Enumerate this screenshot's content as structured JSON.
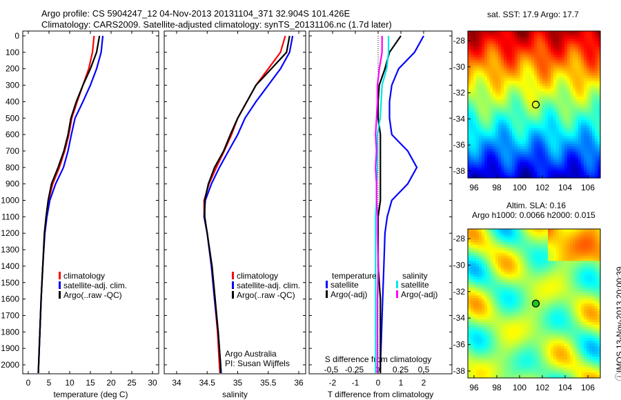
{
  "title_line1": "Argo profile: CS 5904247_12 04-Nov-2013 20131104_371 32.904S 101.426E",
  "title_line2": "Climatology: CARS2009. Satellite-adjusted climatology: synTS_20131106.nc (1.7d later)",
  "colors": {
    "climatology": "#ff0000",
    "satellite": "#0000ff",
    "argo": "#000000",
    "s_satellite": "#00e5e5",
    "s_argo": "#ff00ff"
  },
  "chart_data": [
    {
      "type": "line",
      "name": "temperature",
      "xlabel": "temperature (deg C)",
      "ylabel": "",
      "xlim": [
        -1.5,
        31.5
      ],
      "ylim": [
        2070,
        0
      ],
      "xticks": [
        0,
        5,
        10,
        15,
        20,
        25,
        30
      ],
      "yticks": [
        0,
        100,
        200,
        300,
        400,
        500,
        600,
        700,
        800,
        900,
        1000,
        1100,
        1200,
        1300,
        1400,
        1500,
        1600,
        1700,
        1800,
        1900,
        2000
      ],
      "depth": [
        0,
        100,
        200,
        300,
        400,
        500,
        600,
        700,
        800,
        900,
        1000,
        1100,
        1200,
        1400,
        1600,
        1800,
        2000,
        2050
      ],
      "series": [
        {
          "name": "climatology",
          "values": [
            15.9,
            15.5,
            14.6,
            13.2,
            11.8,
            10.5,
            9.8,
            8.8,
            7.5,
            5.9,
            4.9,
            4.3,
            3.9,
            3.5,
            3.1,
            2.8,
            2.5,
            2.4
          ]
        },
        {
          "name": "satellite-adj. clim.",
          "values": [
            18.0,
            17.6,
            16.5,
            15.0,
            13.2,
            11.3,
            10.4,
            9.6,
            8.5,
            6.6,
            5.2,
            4.5,
            4.0,
            3.5,
            3.1,
            2.8,
            2.5,
            2.4
          ]
        },
        {
          "name": "Argo(..raw -QC)",
          "values": [
            17.2,
            16.5,
            15.0,
            13.2,
            11.6,
            10.3,
            9.6,
            8.6,
            7.2,
            5.6,
            4.8,
            4.3,
            3.9,
            3.5,
            3.1,
            2.8,
            2.5,
            2.45
          ]
        }
      ]
    },
    {
      "type": "line",
      "name": "salinity",
      "xlabel": "salinity",
      "xlim": [
        33.8,
        36.1
      ],
      "ylim": [
        2070,
        0
      ],
      "xticks": [
        34,
        34.5,
        35,
        35.5,
        36
      ],
      "depth": [
        0,
        100,
        200,
        300,
        400,
        500,
        600,
        700,
        800,
        900,
        1000,
        1100,
        1200,
        1400,
        1600,
        1800,
        2000,
        2050
      ],
      "series": [
        {
          "name": "climatology",
          "values": [
            35.78,
            35.7,
            35.5,
            35.3,
            35.15,
            35.0,
            34.9,
            34.78,
            34.65,
            34.53,
            34.45,
            34.45,
            34.5,
            34.57,
            34.62,
            34.67,
            34.7,
            34.71
          ]
        },
        {
          "name": "satellite-adj. clim.",
          "values": [
            35.9,
            35.85,
            35.7,
            35.5,
            35.3,
            35.12,
            35.0,
            34.85,
            34.7,
            34.57,
            34.47,
            34.45,
            34.5,
            34.57,
            34.62,
            34.68,
            34.72,
            34.73
          ]
        },
        {
          "name": "Argo(..raw -QC)",
          "values": [
            35.85,
            35.8,
            35.55,
            35.3,
            35.15,
            35.0,
            34.88,
            34.77,
            34.62,
            34.52,
            34.46,
            34.46,
            34.5,
            34.58,
            34.63,
            34.68,
            34.72,
            34.72
          ]
        }
      ],
      "annotation1": "Argo Australia",
      "annotation2": "PI: Susan Wijffels"
    },
    {
      "type": "line",
      "name": "difference",
      "xlabel": "T difference from climatology",
      "x2label": "S difference from climatology",
      "xlim": [
        -3,
        3
      ],
      "xticks": [
        -2,
        -1,
        0,
        1,
        2
      ],
      "x2ticks": [
        -0.5,
        -0.25,
        0,
        0.25,
        0.5
      ],
      "ylim": [
        2070,
        0
      ],
      "legend_temperature": "temperature",
      "legend_salinity": "salinity",
      "depth": [
        0,
        100,
        200,
        300,
        400,
        500,
        600,
        700,
        800,
        900,
        1000,
        1100,
        1200,
        1400,
        1600,
        1800,
        2000,
        2050
      ],
      "series": [
        {
          "name": "satellite",
          "var": "T",
          "values": [
            2.0,
            1.6,
            0.9,
            0.6,
            0.5,
            0.5,
            0.6,
            1.3,
            1.7,
            1.3,
            0.6,
            0.4,
            0.3,
            0.25,
            0.2,
            0.15,
            0.1,
            0.1
          ]
        },
        {
          "name": "Argo(-adj)",
          "var": "T",
          "values": [
            1.0,
            0.5,
            0.3,
            0.05,
            0.0,
            0.0,
            0.1,
            0.1,
            0.1,
            0.1,
            0.1,
            0.0,
            0.0,
            0.0,
            0.1,
            0.1,
            0.1,
            0.1
          ]
        },
        {
          "name": "satellite",
          "var": "S",
          "values": [
            0.12,
            0.12,
            0.1,
            0.05,
            0.04,
            0.03,
            0.0,
            0.0,
            0.0,
            -0.01,
            -0.01,
            -0.02,
            -0.02,
            -0.02,
            -0.02,
            -0.02,
            -0.02,
            -0.02
          ]
        },
        {
          "name": "Argo(-adj)",
          "var": "S",
          "values": [
            0.05,
            0.05,
            0.02,
            0.0,
            0.0,
            -0.01,
            -0.02,
            -0.01,
            -0.02,
            -0.01,
            -0.01,
            0.0,
            0.0,
            0.01,
            0.0,
            0.0,
            0.0,
            0.0
          ]
        }
      ]
    },
    {
      "type": "heatmap",
      "name": "sst-map",
      "title": "sat. SST: 17.9 Argo: 17.7",
      "xticks": [
        96,
        98,
        100,
        102,
        104,
        106
      ],
      "yticks": [
        -28,
        -30,
        -32,
        -34,
        -36,
        -38
      ],
      "xlim": [
        95.5,
        107.5
      ],
      "ylim": [
        -39,
        -27
      ],
      "marker": {
        "lon": 101.426,
        "lat": -32.904
      }
    },
    {
      "type": "heatmap",
      "name": "sla-map",
      "title": "Altim. SLA: 0.16",
      "subtitle": "Argo h1000: 0.0066 h2000: 0.015",
      "xticks": [
        96,
        98,
        100,
        102,
        104,
        106
      ],
      "yticks": [
        -28,
        -30,
        -32,
        -34,
        -36,
        -38
      ],
      "xlim": [
        95.5,
        107.5
      ],
      "ylim": [
        -39,
        -27
      ],
      "marker": {
        "lon": 101.426,
        "lat": -32.904
      }
    }
  ],
  "legend": {
    "climatology": "climatology",
    "satellite": "satellite-adj. clim.",
    "argo": "Argo(..raw -QC)"
  },
  "footer": "ⓘIMOS 13-Nov-2013 20:00:39"
}
